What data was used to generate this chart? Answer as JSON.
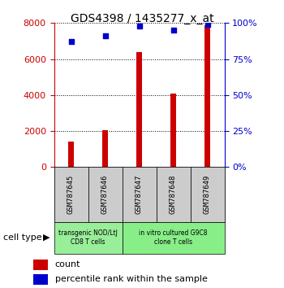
{
  "title": "GDS4398 / 1435277_x_at",
  "samples": [
    "GSM787645",
    "GSM787646",
    "GSM787647",
    "GSM787648",
    "GSM787649"
  ],
  "counts": [
    1400,
    2050,
    6400,
    4100,
    7900
  ],
  "percentiles": [
    87,
    91,
    98,
    95,
    99
  ],
  "ylim_left": [
    0,
    8000
  ],
  "ylim_right": [
    0,
    100
  ],
  "yticks_left": [
    0,
    2000,
    4000,
    6000,
    8000
  ],
  "yticks_right": [
    0,
    25,
    50,
    75,
    100
  ],
  "bar_color": "#cc0000",
  "dot_color": "#0000cc",
  "cell_type_groups": [
    {
      "label": "transgenic NOD/LtJ\nCD8 T cells",
      "indices": [
        0,
        1
      ],
      "color": "#99ee99"
    },
    {
      "label": "in vitro cultured G9C8\nclone T cells",
      "indices": [
        2,
        3,
        4
      ],
      "color": "#88ee88"
    }
  ],
  "cell_type_label": "cell type",
  "legend_count_label": "count",
  "legend_percentile_label": "percentile rank within the sample",
  "background_color": "#ffffff",
  "tick_area_color": "#cccccc",
  "title_fontsize": 10,
  "tick_fontsize": 8,
  "legend_fontsize": 8
}
